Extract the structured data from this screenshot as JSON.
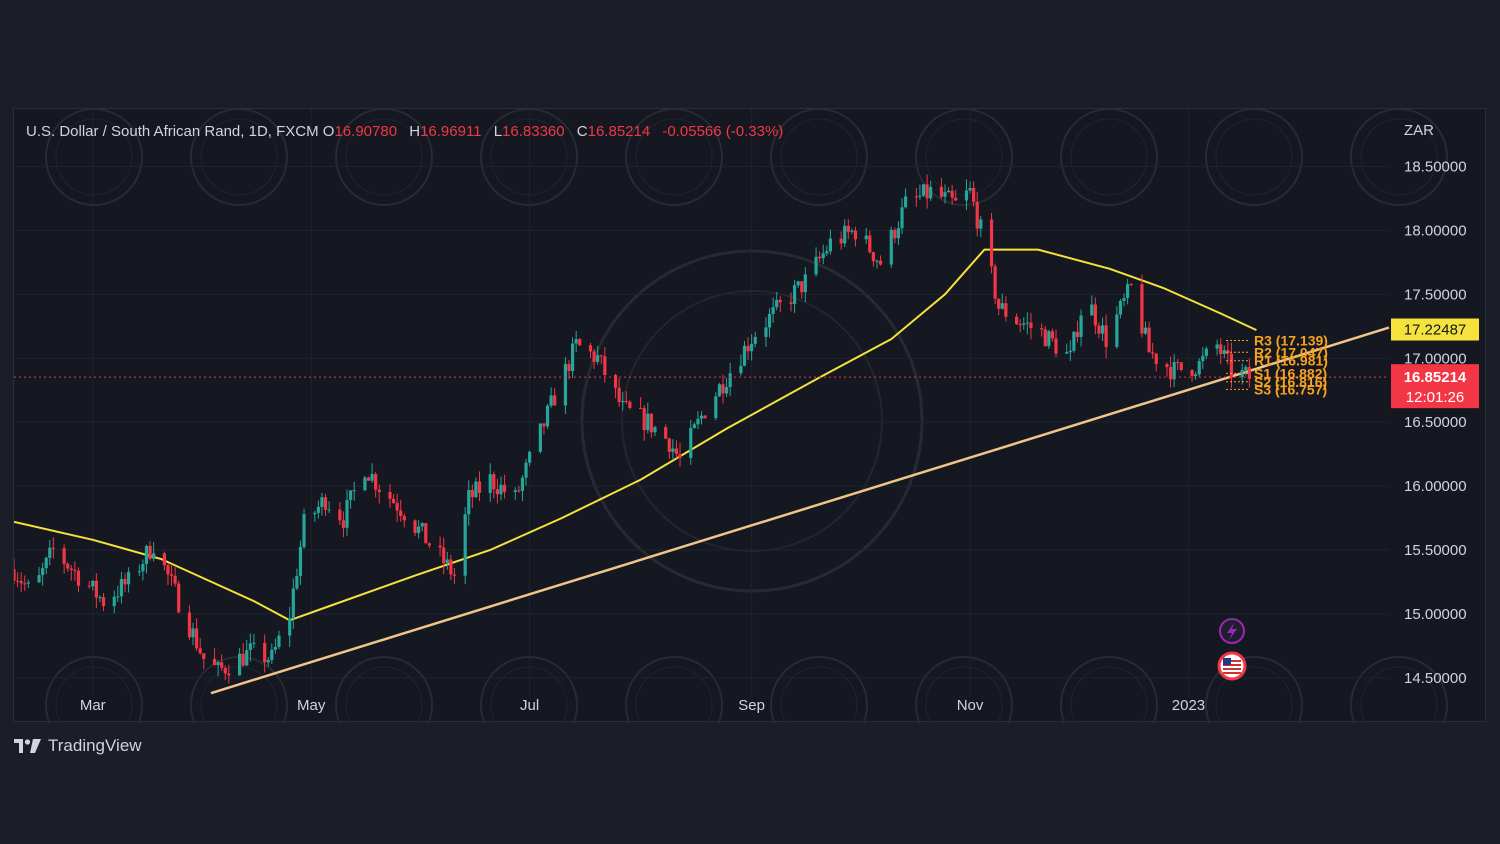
{
  "legend": {
    "symbol": "U.S. Dollar / South African Rand, 1D, FXCM",
    "open_label": "O",
    "open": "16.90780",
    "high_label": "H",
    "high": "16.96911",
    "low_label": "L",
    "low": "16.83360",
    "close_label": "C",
    "close": "16.85214",
    "change": "-0.05566 (-0.33%)"
  },
  "brand": {
    "name": "TradingView",
    "icon": "tradingview-logo-icon"
  },
  "price_tags": {
    "ma": {
      "value": "17.22487",
      "color": "#f5e33b"
    },
    "last": {
      "value": "16.85214",
      "countdown": "12:01:26",
      "color": "#f23645"
    }
  },
  "pivots": [
    {
      "label": "R3 (17.139)"
    },
    {
      "label": "R2 (17.047)"
    },
    {
      "label": "R1 (16.981)"
    },
    {
      "label": "S1 (16.882)"
    },
    {
      "label": "S2 (16.816)"
    },
    {
      "label": "S3 (16.757)"
    }
  ],
  "events": [
    {
      "icon": "lightning-icon",
      "color": "#9c27b0"
    },
    {
      "icon": "us-flag-icon",
      "color": "#f23645"
    }
  ],
  "colors": {
    "up": "#26a69a",
    "down": "#f23645",
    "ma_line": "#f5e33b",
    "trend_line": "#f0c48a",
    "pivot": "#f7a21b"
  },
  "chart_data": {
    "type": "candlestick",
    "currency_label": "ZAR",
    "y_ticks": [
      "18.50000",
      "18.00000",
      "17.50000",
      "17.00000",
      "16.50000",
      "16.00000",
      "15.50000",
      "15.00000",
      "14.50000"
    ],
    "ylim": [
      14.35,
      18.95
    ],
    "x_ticks": [
      {
        "label": "Mar",
        "date": "2022-03-01"
      },
      {
        "label": "May",
        "date": "2022-05-01"
      },
      {
        "label": "Jul",
        "date": "2022-07-01"
      },
      {
        "label": "Sep",
        "date": "2022-09-01"
      },
      {
        "label": "Nov",
        "date": "2022-11-01"
      },
      {
        "label": "2023",
        "date": "2023-01-01"
      }
    ],
    "xlim": [
      "2022-02-07",
      "2023-02-26"
    ],
    "close_path": [
      [
        "2022-02-07",
        15.35
      ],
      [
        "2022-02-12",
        15.15
      ],
      [
        "2022-02-18",
        15.5
      ],
      [
        "2022-02-25",
        15.3
      ],
      [
        "2022-03-04",
        15.1
      ],
      [
        "2022-03-11",
        15.25
      ],
      [
        "2022-03-18",
        15.55
      ],
      [
        "2022-03-25",
        15.1
      ],
      [
        "2022-04-01",
        14.65
      ],
      [
        "2022-04-05",
        14.55
      ],
      [
        "2022-04-08",
        14.6
      ],
      [
        "2022-04-14",
        14.7
      ],
      [
        "2022-04-20",
        14.65
      ],
      [
        "2022-04-25",
        15.0
      ],
      [
        "2022-04-29",
        15.7
      ],
      [
        "2022-05-05",
        15.9
      ],
      [
        "2022-05-10",
        15.75
      ],
      [
        "2022-05-16",
        16.15
      ],
      [
        "2022-05-20",
        16.0
      ],
      [
        "2022-05-27",
        15.8
      ],
      [
        "2022-06-03",
        15.55
      ],
      [
        "2022-06-10",
        15.3
      ],
      [
        "2022-06-14",
        15.9
      ],
      [
        "2022-06-20",
        16.05
      ],
      [
        "2022-06-27",
        15.9
      ],
      [
        "2022-07-01",
        16.2
      ],
      [
        "2022-07-08",
        16.7
      ],
      [
        "2022-07-14",
        17.1
      ],
      [
        "2022-07-20",
        17.0
      ],
      [
        "2022-07-27",
        16.6
      ],
      [
        "2022-08-03",
        16.5
      ],
      [
        "2022-08-09",
        16.35
      ],
      [
        "2022-08-12",
        16.2
      ],
      [
        "2022-08-19",
        16.6
      ],
      [
        "2022-08-26",
        16.9
      ],
      [
        "2022-09-02",
        17.2
      ],
      [
        "2022-09-09",
        17.4
      ],
      [
        "2022-09-16",
        17.6
      ],
      [
        "2022-09-23",
        17.9
      ],
      [
        "2022-09-30",
        18.0
      ],
      [
        "2022-10-07",
        17.75
      ],
      [
        "2022-10-14",
        18.2
      ],
      [
        "2022-10-21",
        18.3
      ],
      [
        "2022-10-28",
        18.2
      ],
      [
        "2022-11-01",
        18.3
      ],
      [
        "2022-11-04",
        18.0
      ],
      [
        "2022-11-09",
        17.4
      ],
      [
        "2022-11-14",
        17.3
      ],
      [
        "2022-11-21",
        17.2
      ],
      [
        "2022-11-29",
        17.0
      ],
      [
        "2022-12-03",
        17.5
      ],
      [
        "2022-12-09",
        17.15
      ],
      [
        "2022-12-16",
        17.55
      ],
      [
        "2022-12-21",
        17.05
      ],
      [
        "2022-12-28",
        16.9
      ],
      [
        "2023-01-04",
        16.95
      ],
      [
        "2023-01-09",
        17.1
      ],
      [
        "2023-01-13",
        16.9
      ],
      [
        "2023-01-18",
        16.85
      ]
    ],
    "moving_average": [
      [
        "2022-02-07",
        15.72
      ],
      [
        "2022-03-01",
        15.58
      ],
      [
        "2022-03-20",
        15.43
      ],
      [
        "2022-04-15",
        15.1
      ],
      [
        "2022-04-25",
        14.95
      ],
      [
        "2022-05-05",
        15.05
      ],
      [
        "2022-05-30",
        15.3
      ],
      [
        "2022-06-20",
        15.5
      ],
      [
        "2022-07-10",
        15.75
      ],
      [
        "2022-08-01",
        16.05
      ],
      [
        "2022-08-25",
        16.45
      ],
      [
        "2022-09-20",
        16.85
      ],
      [
        "2022-10-10",
        17.15
      ],
      [
        "2022-10-25",
        17.5
      ],
      [
        "2022-11-05",
        17.85
      ],
      [
        "2022-11-20",
        17.85
      ],
      [
        "2022-12-10",
        17.7
      ],
      [
        "2022-12-25",
        17.55
      ],
      [
        "2023-01-10",
        17.35
      ],
      [
        "2023-01-20",
        17.22
      ]
    ],
    "trend_line": [
      [
        "2022-04-03",
        14.38
      ],
      [
        "2023-02-26",
        17.24
      ]
    ]
  }
}
